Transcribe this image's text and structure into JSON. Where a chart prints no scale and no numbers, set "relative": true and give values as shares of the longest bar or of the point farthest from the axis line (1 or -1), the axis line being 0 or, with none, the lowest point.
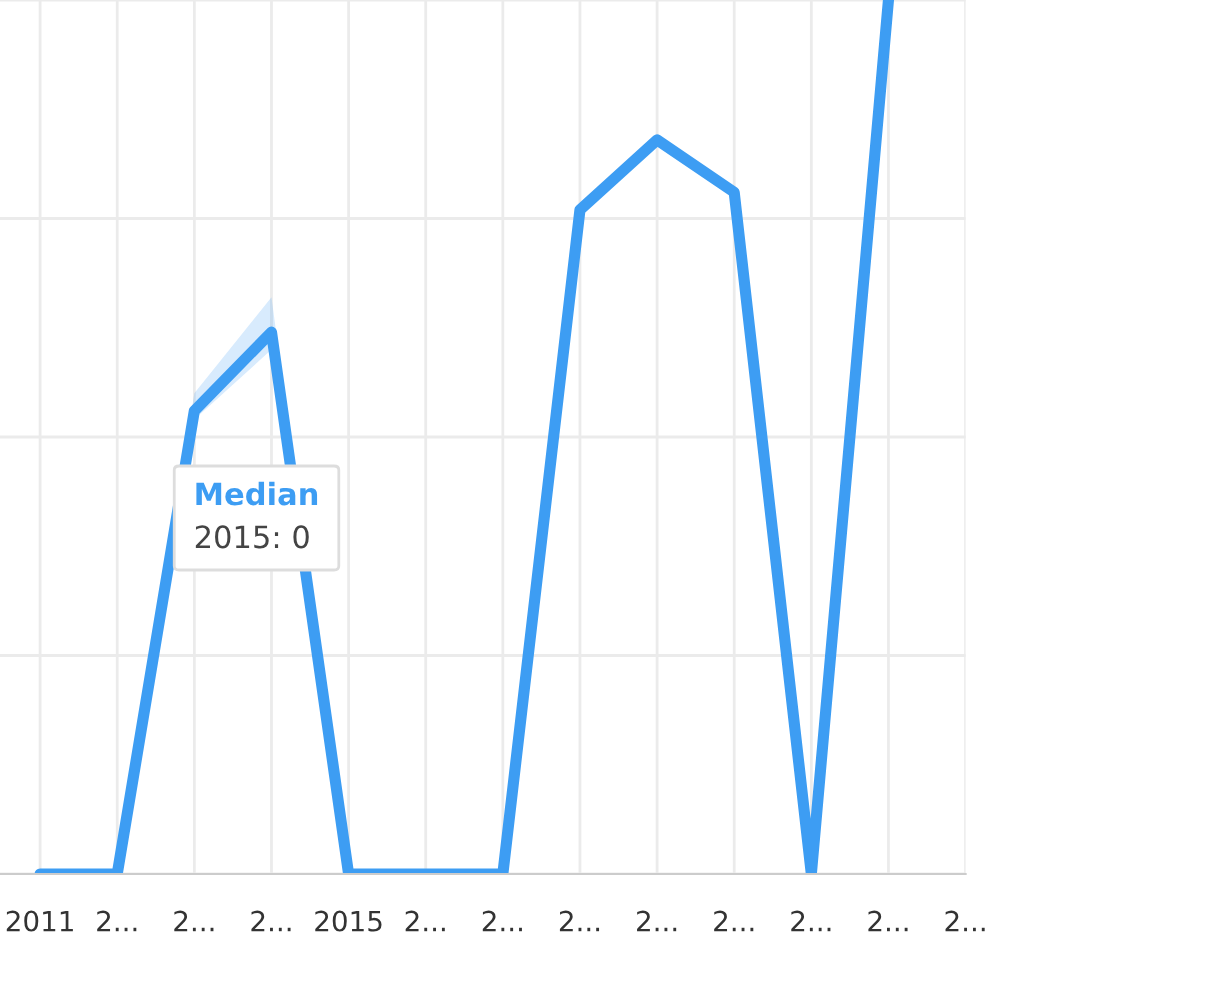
{
  "chart_data": {
    "type": "line",
    "relative": true,
    "categories": [
      "2011",
      "2...",
      "2...",
      "2...",
      "2015",
      "2...",
      "2...",
      "2...",
      "2...",
      "2...",
      "2...",
      "2...",
      "2..."
    ],
    "series": [
      {
        "name": "Median",
        "color": "#3d9df3",
        "values": [
          0,
          0,
          0.53,
          0.62,
          0,
          0,
          0,
          0.76,
          0.84,
          0.78,
          0,
          1,
          null
        ],
        "lower": [
          0,
          0,
          0.52,
          0.6,
          0,
          0,
          0,
          0.76,
          0.84,
          0.78,
          0,
          1,
          null
        ],
        "upper": [
          0,
          0,
          0.55,
          0.66,
          0,
          0,
          0,
          0.76,
          0.84,
          0.78,
          0,
          1,
          null
        ]
      }
    ],
    "annotations": [
      "2015: 0"
    ],
    "grid": true,
    "legend": false,
    "marker": "none",
    "line_style": "solid"
  }
}
